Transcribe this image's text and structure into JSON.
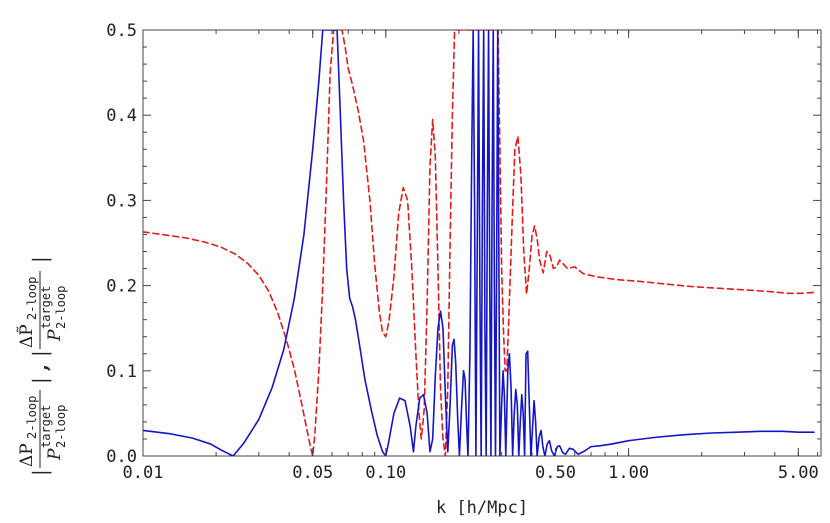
{
  "chart_data": {
    "type": "line",
    "xscale": "log",
    "xlim": [
      0.01,
      6.2
    ],
    "ylim": [
      0.0,
      0.5
    ],
    "grid": false,
    "xlabel": "k [h/Mpc]",
    "ylabel": {
      "term1_numerator": "ΔP",
      "term1_numerator_sub": "2-loop",
      "term1_denominator": "P",
      "term1_denominator_sup": "target",
      "term1_denominator_sub": "2-loop",
      "separator": ",",
      "term2_numerator": "ΔP̃",
      "term2_numerator_sub": "2-loop",
      "term2_denominator": "P",
      "term2_denominator_sup": "target",
      "term2_denominator_sub": "2-loop",
      "bar": "|"
    },
    "x_ticks": [
      {
        "value": 0.01,
        "label": "0.01"
      },
      {
        "value": 0.05,
        "label": "0.05"
      },
      {
        "value": 0.1,
        "label": "0.10"
      },
      {
        "value": 0.5,
        "label": "0.50"
      },
      {
        "value": 1.0,
        "label": "1.00"
      },
      {
        "value": 5.0,
        "label": "5.00"
      }
    ],
    "y_ticks": [
      {
        "value": 0.0,
        "label": "0.0"
      },
      {
        "value": 0.1,
        "label": "0.1"
      },
      {
        "value": 0.2,
        "label": "0.2"
      },
      {
        "value": 0.3,
        "label": "0.3"
      },
      {
        "value": 0.4,
        "label": "0.4"
      },
      {
        "value": 0.5,
        "label": "0.5"
      }
    ],
    "series": [
      {
        "color": "#e41a1c",
        "style": "dashed",
        "points": [
          [
            0.01,
            0.263
          ],
          [
            0.012,
            0.26
          ],
          [
            0.015,
            0.256
          ],
          [
            0.018,
            0.251
          ],
          [
            0.021,
            0.245
          ],
          [
            0.024,
            0.237
          ],
          [
            0.027,
            0.226
          ],
          [
            0.03,
            0.212
          ],
          [
            0.033,
            0.193
          ],
          [
            0.036,
            0.167
          ],
          [
            0.039,
            0.136
          ],
          [
            0.042,
            0.102
          ],
          [
            0.045,
            0.062
          ],
          [
            0.047,
            0.035
          ],
          [
            0.049,
            0.01
          ],
          [
            0.05,
            0.0
          ],
          [
            0.051,
            0.025
          ],
          [
            0.053,
            0.1
          ],
          [
            0.055,
            0.2
          ],
          [
            0.057,
            0.32
          ],
          [
            0.059,
            0.45
          ],
          [
            0.061,
            0.5
          ],
          [
            0.066,
            0.5
          ],
          [
            0.068,
            0.48
          ],
          [
            0.07,
            0.455
          ],
          [
            0.073,
            0.435
          ],
          [
            0.077,
            0.405
          ],
          [
            0.081,
            0.37
          ],
          [
            0.086,
            0.3
          ],
          [
            0.09,
            0.225
          ],
          [
            0.094,
            0.17
          ],
          [
            0.097,
            0.145
          ],
          [
            0.1,
            0.14
          ],
          [
            0.103,
            0.158
          ],
          [
            0.108,
            0.21
          ],
          [
            0.113,
            0.285
          ],
          [
            0.118,
            0.315
          ],
          [
            0.123,
            0.3
          ],
          [
            0.128,
            0.22
          ],
          [
            0.133,
            0.12
          ],
          [
            0.137,
            0.05
          ],
          [
            0.14,
            0.02
          ],
          [
            0.144,
            0.055
          ],
          [
            0.148,
            0.18
          ],
          [
            0.152,
            0.34
          ],
          [
            0.156,
            0.395
          ],
          [
            0.16,
            0.35
          ],
          [
            0.164,
            0.22
          ],
          [
            0.168,
            0.08
          ],
          [
            0.172,
            0.02
          ],
          [
            0.176,
            0.0
          ],
          [
            0.18,
            0.08
          ],
          [
            0.184,
            0.25
          ],
          [
            0.188,
            0.4
          ],
          [
            0.192,
            0.5
          ],
          [
            0.29,
            0.5
          ],
          [
            0.295,
            0.36
          ],
          [
            0.3,
            0.22
          ],
          [
            0.305,
            0.15
          ],
          [
            0.31,
            0.1
          ],
          [
            0.315,
            0.1
          ],
          [
            0.32,
            0.15
          ],
          [
            0.33,
            0.26
          ],
          [
            0.34,
            0.36
          ],
          [
            0.35,
            0.375
          ],
          [
            0.36,
            0.33
          ],
          [
            0.37,
            0.24
          ],
          [
            0.38,
            0.19
          ],
          [
            0.39,
            0.22
          ],
          [
            0.4,
            0.258
          ],
          [
            0.41,
            0.27
          ],
          [
            0.42,
            0.255
          ],
          [
            0.43,
            0.23
          ],
          [
            0.445,
            0.215
          ],
          [
            0.46,
            0.24
          ],
          [
            0.475,
            0.235
          ],
          [
            0.49,
            0.22
          ],
          [
            0.505,
            0.222
          ],
          [
            0.52,
            0.23
          ],
          [
            0.54,
            0.225
          ],
          [
            0.56,
            0.22
          ],
          [
            0.6,
            0.222
          ],
          [
            0.65,
            0.214
          ],
          [
            0.75,
            0.21
          ],
          [
            0.9,
            0.207
          ],
          [
            1.1,
            0.205
          ],
          [
            1.4,
            0.202
          ],
          [
            1.8,
            0.199
          ],
          [
            2.3,
            0.197
          ],
          [
            3.0,
            0.195
          ],
          [
            3.8,
            0.193
          ],
          [
            4.5,
            0.191
          ],
          [
            5.2,
            0.191
          ],
          [
            5.8,
            0.192
          ]
        ]
      },
      {
        "color": "#1515c8",
        "style": "solid",
        "points": [
          [
            0.01,
            0.03
          ],
          [
            0.013,
            0.026
          ],
          [
            0.016,
            0.021
          ],
          [
            0.019,
            0.014
          ],
          [
            0.021,
            0.007
          ],
          [
            0.0235,
            0.0
          ],
          [
            0.026,
            0.015
          ],
          [
            0.03,
            0.043
          ],
          [
            0.034,
            0.08
          ],
          [
            0.038,
            0.125
          ],
          [
            0.042,
            0.185
          ],
          [
            0.046,
            0.26
          ],
          [
            0.05,
            0.36
          ],
          [
            0.053,
            0.44
          ],
          [
            0.055,
            0.5
          ],
          [
            0.063,
            0.5
          ],
          [
            0.065,
            0.4
          ],
          [
            0.067,
            0.3
          ],
          [
            0.069,
            0.22
          ],
          [
            0.071,
            0.185
          ],
          [
            0.073,
            0.175
          ],
          [
            0.075,
            0.16
          ],
          [
            0.078,
            0.13
          ],
          [
            0.082,
            0.09
          ],
          [
            0.087,
            0.055
          ],
          [
            0.092,
            0.025
          ],
          [
            0.097,
            0.005
          ],
          [
            0.1,
            0.0
          ],
          [
            0.103,
            0.018
          ],
          [
            0.108,
            0.05
          ],
          [
            0.114,
            0.068
          ],
          [
            0.12,
            0.065
          ],
          [
            0.126,
            0.035
          ],
          [
            0.13,
            0.005
          ],
          [
            0.133,
            0.035
          ],
          [
            0.138,
            0.068
          ],
          [
            0.143,
            0.072
          ],
          [
            0.148,
            0.05
          ],
          [
            0.152,
            0.005
          ],
          [
            0.156,
            0.02
          ],
          [
            0.16,
            0.095
          ],
          [
            0.164,
            0.15
          ],
          [
            0.168,
            0.17
          ],
          [
            0.172,
            0.15
          ],
          [
            0.176,
            0.07
          ],
          [
            0.18,
            0.005
          ],
          [
            0.184,
            0.06
          ],
          [
            0.188,
            0.13
          ],
          [
            0.191,
            0.137
          ],
          [
            0.194,
            0.11
          ],
          [
            0.198,
            0.04
          ],
          [
            0.201,
            0.0
          ],
          [
            0.205,
            0.055
          ],
          [
            0.209,
            0.1
          ],
          [
            0.212,
            0.09
          ],
          [
            0.215,
            0.04
          ],
          [
            0.218,
            0.0
          ],
          [
            0.222,
            0.12
          ],
          [
            0.226,
            0.36
          ],
          [
            0.229,
            0.5
          ],
          [
            0.232,
            0.3
          ],
          [
            0.235,
            0.0
          ],
          [
            0.238,
            0.25
          ],
          [
            0.241,
            0.5
          ],
          [
            0.244,
            0.2
          ],
          [
            0.247,
            0.0
          ],
          [
            0.25,
            0.3
          ],
          [
            0.253,
            0.5
          ],
          [
            0.256,
            0.15
          ],
          [
            0.259,
            0.0
          ],
          [
            0.262,
            0.3
          ],
          [
            0.265,
            0.5
          ],
          [
            0.268,
            0.2
          ],
          [
            0.271,
            0.0
          ],
          [
            0.274,
            0.3
          ],
          [
            0.277,
            0.5
          ],
          [
            0.28,
            0.2
          ],
          [
            0.283,
            0.0
          ],
          [
            0.286,
            0.22
          ],
          [
            0.289,
            0.5
          ],
          [
            0.292,
            0.25
          ],
          [
            0.295,
            0.0
          ],
          [
            0.3,
            0.06
          ],
          [
            0.304,
            0.1
          ],
          [
            0.308,
            0.07
          ],
          [
            0.312,
            0.0
          ],
          [
            0.318,
            0.1
          ],
          [
            0.323,
            0.12
          ],
          [
            0.328,
            0.08
          ],
          [
            0.333,
            0.0
          ],
          [
            0.338,
            0.05
          ],
          [
            0.343,
            0.078
          ],
          [
            0.348,
            0.06
          ],
          [
            0.353,
            0.0
          ],
          [
            0.358,
            0.04
          ],
          [
            0.363,
            0.072
          ],
          [
            0.368,
            0.05
          ],
          [
            0.373,
            0.0
          ],
          [
            0.378,
            0.12
          ],
          [
            0.384,
            0.123
          ],
          [
            0.39,
            0.06
          ],
          [
            0.396,
            0.0
          ],
          [
            0.402,
            0.032
          ],
          [
            0.408,
            0.065
          ],
          [
            0.414,
            0.04
          ],
          [
            0.42,
            0.0
          ],
          [
            0.428,
            0.022
          ],
          [
            0.436,
            0.03
          ],
          [
            0.444,
            0.01
          ],
          [
            0.452,
            0.0
          ],
          [
            0.462,
            0.014
          ],
          [
            0.472,
            0.018
          ],
          [
            0.482,
            0.006
          ],
          [
            0.495,
            0.0
          ],
          [
            0.508,
            0.011
          ],
          [
            0.52,
            0.012
          ],
          [
            0.535,
            0.004
          ],
          [
            0.55,
            0.002
          ],
          [
            0.57,
            0.009
          ],
          [
            0.59,
            0.008
          ],
          [
            0.62,
            0.002
          ],
          [
            0.66,
            0.006
          ],
          [
            0.7,
            0.011
          ],
          [
            0.76,
            0.012
          ],
          [
            0.85,
            0.014
          ],
          [
            1.0,
            0.018
          ],
          [
            1.3,
            0.022
          ],
          [
            1.7,
            0.025
          ],
          [
            2.2,
            0.027
          ],
          [
            2.8,
            0.028
          ],
          [
            3.5,
            0.029
          ],
          [
            4.3,
            0.029
          ],
          [
            5.0,
            0.028
          ],
          [
            5.8,
            0.028
          ]
        ]
      }
    ]
  }
}
